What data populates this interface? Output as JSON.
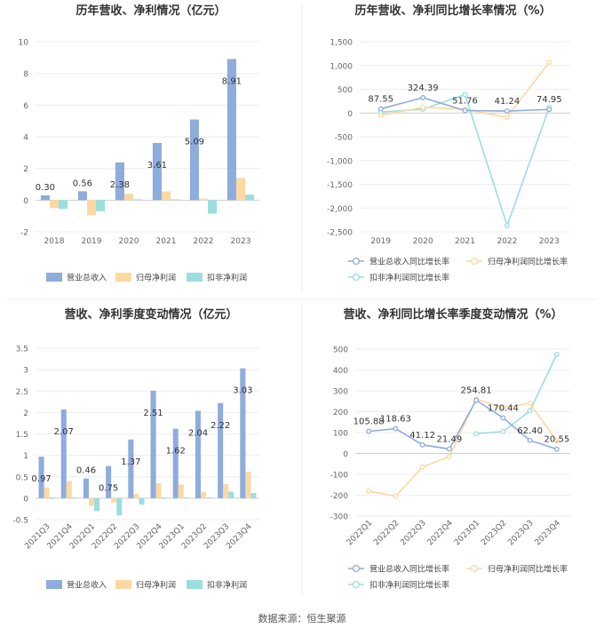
{
  "footer": {
    "source": "数据来源：恒生聚源"
  },
  "chart_data": [
    {
      "type": "bar",
      "title": "历年营收、净利情况（亿元）",
      "categories": [
        "2018",
        "2019",
        "2020",
        "2021",
        "2022",
        "2023"
      ],
      "ylim": [
        -2,
        10
      ],
      "yticks": [
        -2,
        0,
        2,
        4,
        6,
        8,
        10
      ],
      "series": [
        {
          "name": "营业总收入",
          "color": "#8eacdc",
          "values": [
            0.3,
            0.56,
            2.38,
            3.61,
            5.09,
            8.91
          ],
          "labels": [
            "0.30",
            "0.56",
            "2.38",
            "3.61",
            "5.09",
            "8.91"
          ]
        },
        {
          "name": "归母净利润",
          "color": "#fcd9a0",
          "values": [
            -0.5,
            -0.95,
            0.4,
            0.55,
            0.1,
            1.4
          ]
        },
        {
          "name": "扣非净利润",
          "color": "#9bdedf",
          "values": [
            -0.55,
            -0.7,
            0.05,
            0.05,
            -0.85,
            0.35
          ]
        }
      ],
      "grid": true,
      "legend": "bottom"
    },
    {
      "type": "line",
      "title": "历年营收、净利同比增长率情况（%）",
      "categories": [
        "2019",
        "2020",
        "2021",
        "2022",
        "2023"
      ],
      "ylim": [
        -2500,
        1500
      ],
      "yticks": [
        -2500,
        -2000,
        -1500,
        -1000,
        -500,
        0,
        500,
        1000,
        1500
      ],
      "series": [
        {
          "name": "营业总收入同比增长率",
          "color": "#8eacdc",
          "values": [
            87.55,
            324.39,
            51.76,
            41.24,
            74.95
          ],
          "labels": [
            "87.55",
            "324.39",
            "51.76",
            "41.24",
            "74.95"
          ]
        },
        {
          "name": "归母净利润同比增长率",
          "color": "#fcd9a0",
          "values": [
            -50,
            120,
            80,
            -90,
            1070
          ]
        },
        {
          "name": "扣非净利润同比增长率",
          "color": "#9bdedf",
          "values": [
            20,
            80,
            390,
            -2370,
            120
          ]
        }
      ],
      "grid": true,
      "legend": "bottom"
    },
    {
      "type": "bar",
      "title": "营收、净利季度变动情况（亿元）",
      "categories": [
        "2021Q3",
        "2021Q4",
        "2022Q1",
        "2022Q2",
        "2022Q3",
        "2022Q4",
        "2023Q1",
        "2023Q2",
        "2023Q3",
        "2023Q4"
      ],
      "ylim": [
        -0.5,
        3.5
      ],
      "yticks": [
        -0.5,
        0,
        0.5,
        1,
        1.5,
        2,
        2.5,
        3,
        3.5
      ],
      "series": [
        {
          "name": "营业总收入",
          "color": "#8eacdc",
          "values": [
            0.97,
            2.07,
            0.46,
            0.75,
            1.37,
            2.51,
            1.62,
            2.04,
            2.22,
            3.03
          ],
          "labels": [
            "0.97",
            "2.07",
            "0.46",
            "0.75",
            "1.37",
            "2.51",
            "1.62",
            "2.04",
            "2.22",
            "3.03"
          ]
        },
        {
          "name": "归母净利润",
          "color": "#fcd9a0",
          "values": [
            0.25,
            0.4,
            -0.18,
            -0.1,
            0.1,
            0.35,
            0.32,
            0.15,
            0.33,
            0.62
          ]
        },
        {
          "name": "扣非净利润",
          "color": "#9bdedf",
          "values": [
            0.02,
            0.02,
            -0.3,
            -0.4,
            -0.15,
            0.02,
            0.02,
            0.02,
            0.15,
            0.12
          ]
        }
      ],
      "grid": true,
      "legend": "bottom"
    },
    {
      "type": "line",
      "title": "营收、净利同比增长率季度变动情况（%）",
      "categories": [
        "2022Q1",
        "2022Q2",
        "2022Q3",
        "2022Q4",
        "2023Q1",
        "2023Q2",
        "2023Q3",
        "2023Q4"
      ],
      "ylim": [
        -300,
        500
      ],
      "yticks": [
        -300,
        -200,
        -100,
        0,
        100,
        200,
        300,
        400,
        500
      ],
      "series": [
        {
          "name": "营业总收入同比增长率",
          "color": "#8eacdc",
          "values": [
            105.88,
            118.63,
            41.12,
            21.49,
            254.81,
            170.44,
            62.4,
            20.55
          ],
          "labels": [
            "105.88",
            "118.63",
            "41.12",
            "21.49",
            "254.81",
            "170.44",
            "62.40",
            "20.55"
          ]
        },
        {
          "name": "归母净利润同比增长率",
          "color": "#fcd9a0",
          "values": [
            -180,
            -205,
            -65,
            -15,
            260,
            220,
            240,
            60
          ]
        },
        {
          "name": "扣非净利润同比增长率",
          "color": "#9bdedf",
          "values": [
            null,
            null,
            null,
            null,
            95,
            105,
            205,
            475
          ]
        }
      ],
      "grid": true,
      "legend": "bottom"
    }
  ]
}
